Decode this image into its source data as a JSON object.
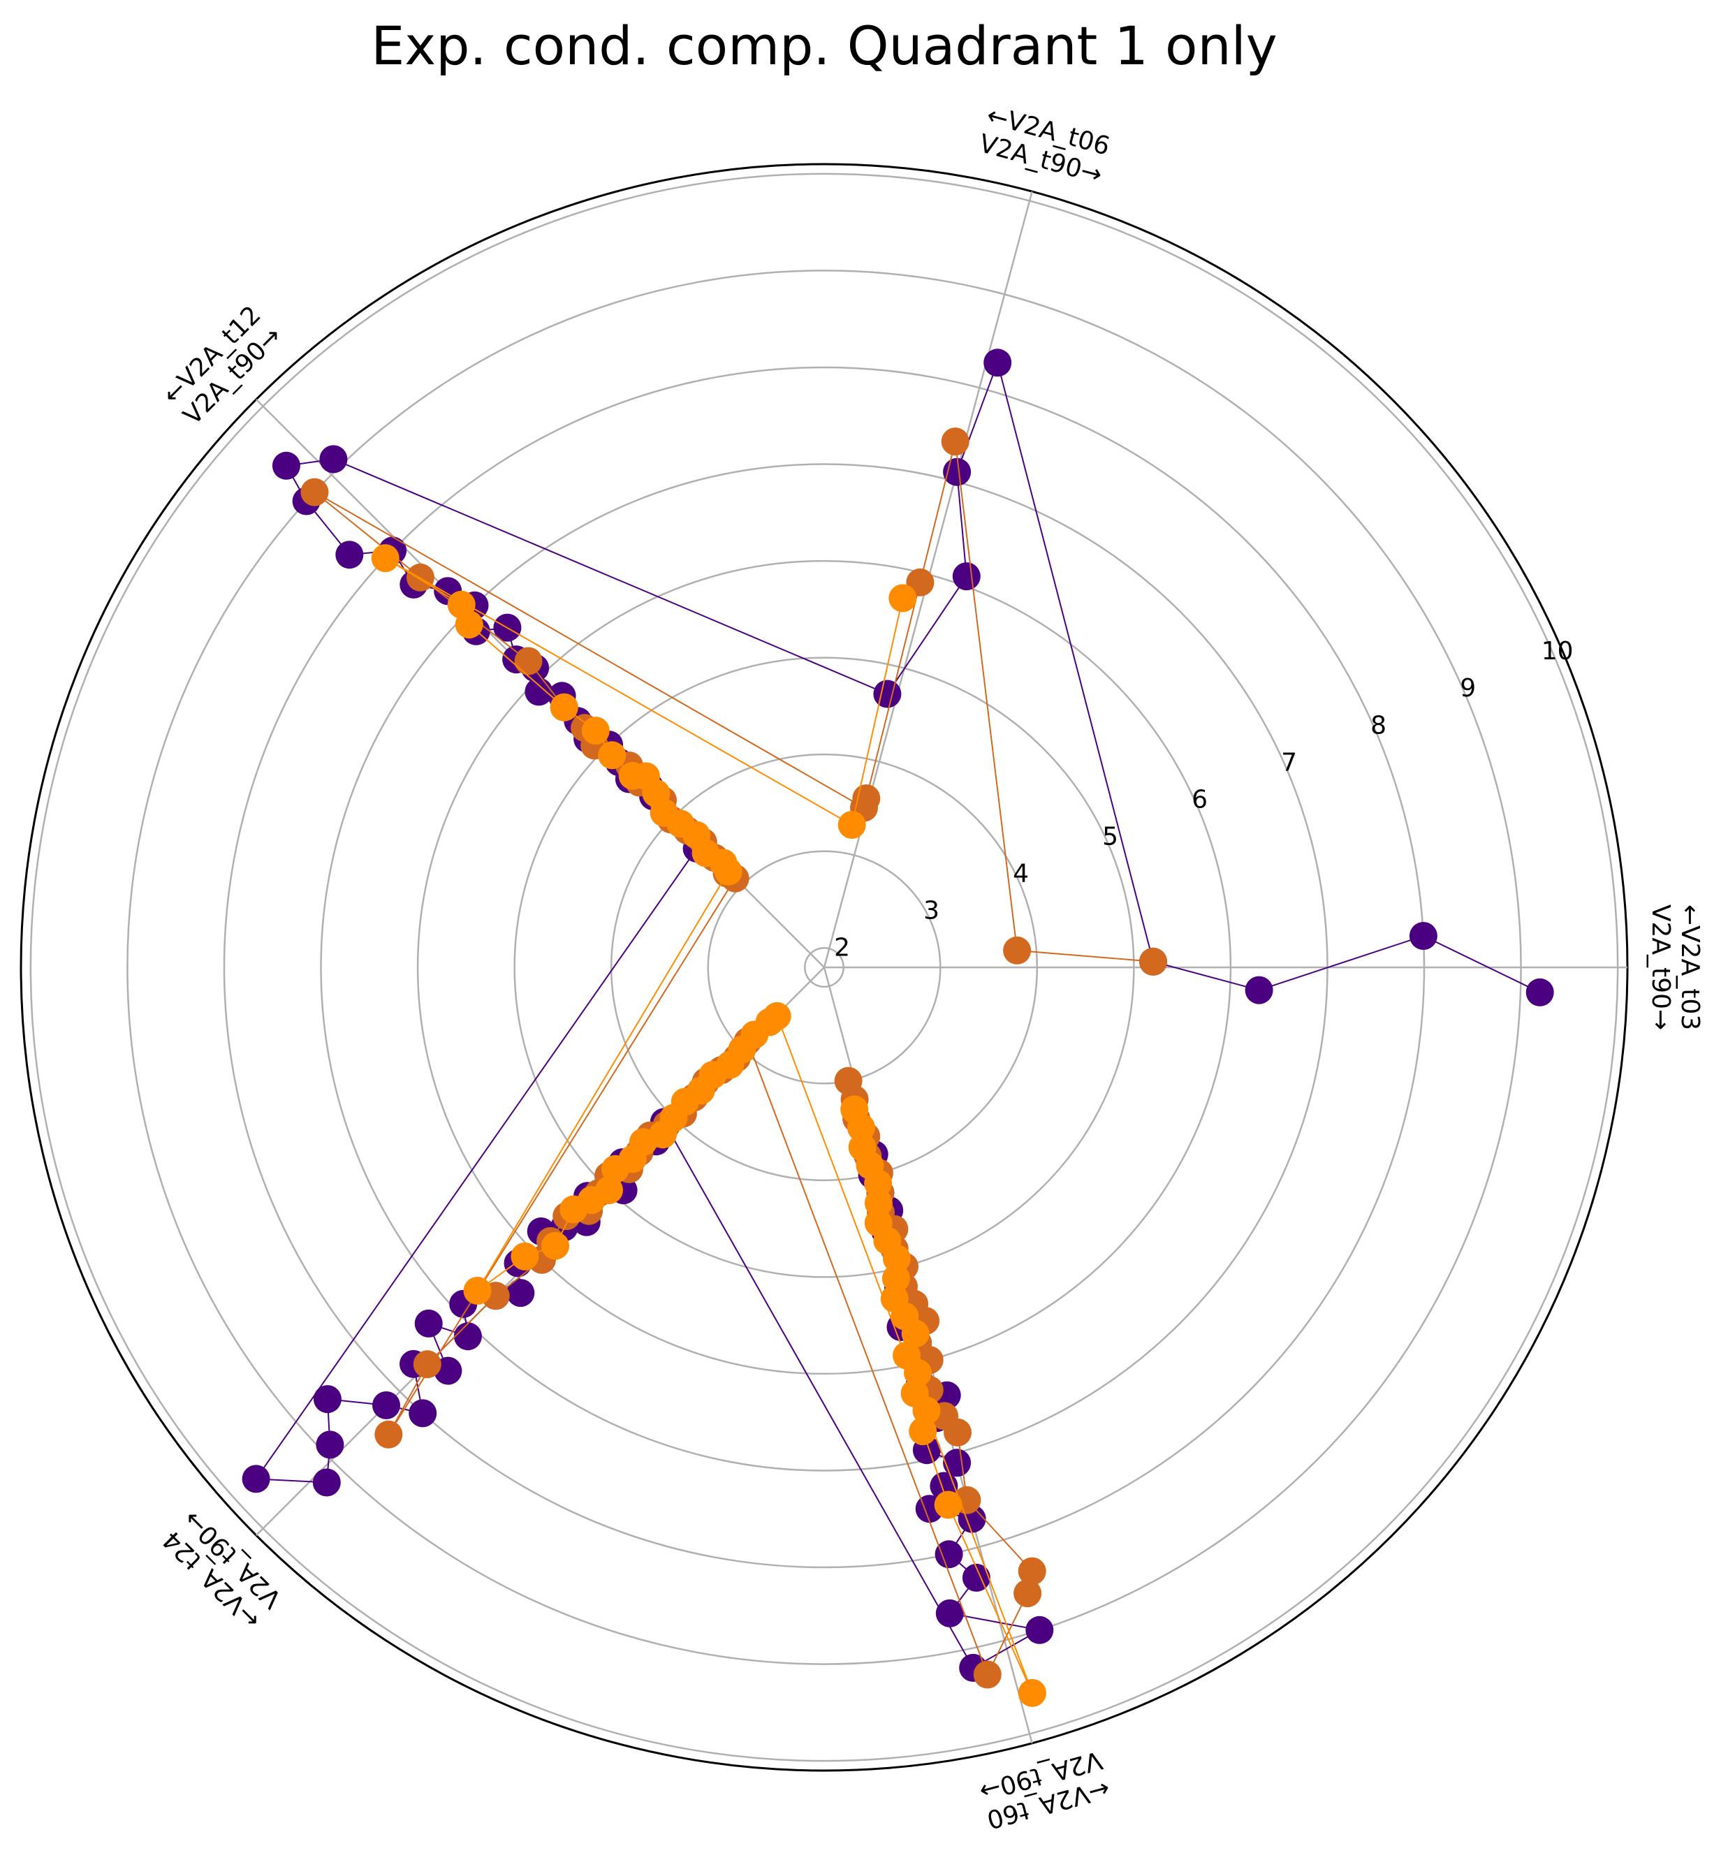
{
  "chart_data": {
    "type": "scatter",
    "subtype": "polar",
    "title": "Exp. cond. comp. Quadrant 1 only",
    "r_range": [
      1.8,
      10.1
    ],
    "r_ticks": [
      2,
      3,
      4,
      5,
      6,
      7,
      8,
      9,
      10
    ],
    "grid": true,
    "spokes": [
      {
        "angle_deg": 0,
        "label_top": "←V2A_t03",
        "label_bottom": "V2A_t90→"
      },
      {
        "angle_deg": 75,
        "label_top": "←V2A_t06",
        "label_bottom": "V2A_t90→"
      },
      {
        "angle_deg": 135,
        "label_top": "←V2A_t12",
        "label_bottom": "V2A_t90→"
      },
      {
        "angle_deg": 225,
        "label_top": "←V2A_t24",
        "label_bottom": "V2A_t90→"
      },
      {
        "angle_deg": 285,
        "label_top": "←V2A_t60",
        "label_bottom": "V2A_t90→"
      }
    ],
    "series": [
      {
        "color": "#4b0082",
        "points": [
          [
            358,
            9.2
          ],
          [
            3,
            8.0
          ],
          [
            357,
            6.3
          ],
          [
            1,
            5.2
          ],
          [
            74,
            8.3
          ],
          [
            75,
            7.1
          ],
          [
            70,
            6.1
          ],
          [
            77,
            4.7
          ],
          [
            134,
            9.1
          ],
          [
            137,
            9.4
          ],
          [
            138,
            9.0
          ],
          [
            139,
            8.3
          ],
          [
            136,
            8.0
          ],
          [
            137,
            7.6
          ],
          [
            135,
            7.3
          ],
          [
            134,
            7.0
          ],
          [
            136,
            6.8
          ],
          [
            133,
            6.6
          ],
          [
            135,
            6.3
          ],
          [
            134,
            6.1
          ],
          [
            136,
            5.9
          ],
          [
            134,
            5.7
          ],
          [
            135,
            5.4
          ],
          [
            136,
            5.2
          ],
          [
            134,
            5.0
          ],
          [
            135,
            4.8
          ],
          [
            136,
            4.6
          ],
          [
            134,
            4.4
          ],
          [
            135,
            4.3
          ],
          [
            136,
            4.1
          ],
          [
            137,
            3.6
          ],
          [
            222,
            9.7
          ],
          [
            226,
            9.2
          ],
          [
            224,
            8.9
          ],
          [
            221,
            8.6
          ],
          [
            225,
            8.2
          ],
          [
            228,
            8.0
          ],
          [
            224,
            7.7
          ],
          [
            227,
            7.5
          ],
          [
            222,
            7.3
          ],
          [
            226,
            7.1
          ],
          [
            223,
            6.9
          ],
          [
            225,
            6.6
          ],
          [
            227,
            6.4
          ],
          [
            224,
            6.2
          ],
          [
            226,
            6.0
          ],
          [
            223,
            5.8
          ],
          [
            225,
            5.6
          ],
          [
            227,
            5.4
          ],
          [
            224,
            5.2
          ],
          [
            226,
            5.0
          ],
          [
            228,
            4.9
          ],
          [
            224,
            4.7
          ],
          [
            225,
            4.5
          ],
          [
            226,
            4.3
          ],
          [
            224,
            4.1
          ],
          [
            282,
            9.2
          ],
          [
            288,
            9.0
          ],
          [
            281,
            8.6
          ],
          [
            284,
            8.3
          ],
          [
            282,
            8.0
          ],
          [
            285,
            7.7
          ],
          [
            281,
            7.5
          ],
          [
            283,
            7.3
          ],
          [
            285,
            7.1
          ],
          [
            282,
            6.9
          ],
          [
            284,
            6.6
          ],
          [
            286,
            6.4
          ],
          [
            283,
            6.2
          ],
          [
            285,
            6.0
          ],
          [
            284,
            5.8
          ],
          [
            282,
            5.6
          ],
          [
            284,
            5.4
          ],
          [
            283,
            5.2
          ],
          [
            285,
            5.0
          ],
          [
            284,
            4.8
          ],
          [
            283,
            4.6
          ],
          [
            285,
            4.4
          ],
          [
            284,
            4.2
          ],
          [
            283,
            4.0
          ],
          [
            285,
            3.8
          ]
        ]
      },
      {
        "color": "#d2691e",
        "points": [
          [
            1,
            5.2
          ],
          [
            5,
            3.8
          ],
          [
            76,
            7.4
          ],
          [
            76,
            5.9
          ],
          [
            76,
            3.6
          ],
          [
            76,
            3.5
          ],
          [
            137,
            9.0
          ],
          [
            136,
            7.6
          ],
          [
            134,
            6.2
          ],
          [
            135,
            5.6
          ],
          [
            135,
            5.3
          ],
          [
            136,
            5.1
          ],
          [
            134,
            4.7
          ],
          [
            135,
            4.5
          ],
          [
            134,
            4.2
          ],
          [
            136,
            4.0
          ],
          [
            135,
            3.8
          ],
          [
            134,
            3.6
          ],
          [
            135,
            3.4
          ],
          [
            136,
            3.2
          ],
          [
            135,
            3.1
          ],
          [
            227,
            8.4
          ],
          [
            225,
            7.6
          ],
          [
            225,
            6.6
          ],
          [
            226,
            6.0
          ],
          [
            225,
            5.8
          ],
          [
            224,
            5.5
          ],
          [
            226,
            5.3
          ],
          [
            225,
            5.1
          ],
          [
            224,
            4.9
          ],
          [
            226,
            4.7
          ],
          [
            225,
            4.5
          ],
          [
            224,
            4.3
          ],
          [
            225,
            4.1
          ],
          [
            226,
            3.9
          ],
          [
            225,
            3.7
          ],
          [
            224,
            3.5
          ],
          [
            225,
            3.3
          ],
          [
            226,
            3.1
          ],
          [
            224,
            2.9
          ],
          [
            283,
            9.3
          ],
          [
            288,
            8.6
          ],
          [
            289,
            8.4
          ],
          [
            285,
            7.5
          ],
          [
            286,
            6.8
          ],
          [
            285,
            6.6
          ],
          [
            284,
            6.3
          ],
          [
            285,
            6.0
          ],
          [
            284,
            5.8
          ],
          [
            286,
            5.6
          ],
          [
            285,
            5.4
          ],
          [
            284,
            5.2
          ],
          [
            285,
            5.0
          ],
          [
            284,
            4.8
          ],
          [
            285,
            4.6
          ],
          [
            283,
            4.4
          ],
          [
            284,
            4.2
          ],
          [
            285,
            4.0
          ],
          [
            283,
            3.8
          ],
          [
            284,
            3.6
          ],
          [
            282,
            3.4
          ],
          [
            283,
            3.2
          ],
          [
            282,
            3.0
          ]
        ]
      },
      {
        "color": "#ff8c00",
        "points": [
          [
            78,
            5.7
          ],
          [
            79,
            3.3
          ],
          [
            137,
            8.0
          ],
          [
            135,
            7.1
          ],
          [
            136,
            6.9
          ],
          [
            135,
            5.6
          ],
          [
            134,
            5.2
          ],
          [
            135,
            4.9
          ],
          [
            135,
            4.6
          ],
          [
            133,
            4.5
          ],
          [
            134,
            4.3
          ],
          [
            136,
            4.1
          ],
          [
            135,
            3.9
          ],
          [
            134,
            3.7
          ],
          [
            136,
            3.5
          ],
          [
            134,
            3.3
          ],
          [
            135,
            3.2
          ],
          [
            223,
            6.7
          ],
          [
            224,
            6.1
          ],
          [
            226,
            5.8
          ],
          [
            224,
            5.4
          ],
          [
            225,
            5.2
          ],
          [
            226,
            5.0
          ],
          [
            224,
            4.8
          ],
          [
            225,
            4.6
          ],
          [
            224,
            4.4
          ],
          [
            226,
            4.2
          ],
          [
            225,
            4.0
          ],
          [
            224,
            3.8
          ],
          [
            225,
            3.6
          ],
          [
            224,
            3.4
          ],
          [
            226,
            3.2
          ],
          [
            225,
            3.0
          ],
          [
            224,
            2.8
          ],
          [
            225,
            2.6
          ],
          [
            226,
            2.5
          ],
          [
            286,
            9.6
          ],
          [
            283,
            7.5
          ],
          [
            282,
            6.7
          ],
          [
            283,
            6.5
          ],
          [
            282,
            6.3
          ],
          [
            283,
            6.1
          ],
          [
            282,
            5.9
          ],
          [
            284,
            5.7
          ],
          [
            283,
            5.5
          ],
          [
            282,
            5.3
          ],
          [
            283,
            5.1
          ],
          [
            284,
            4.9
          ],
          [
            283,
            4.7
          ],
          [
            282,
            4.5
          ],
          [
            283,
            4.3
          ],
          [
            284,
            4.1
          ],
          [
            283,
            3.9
          ],
          [
            282,
            3.7
          ],
          [
            283,
            3.5
          ],
          [
            282,
            3.3
          ]
        ]
      }
    ]
  }
}
